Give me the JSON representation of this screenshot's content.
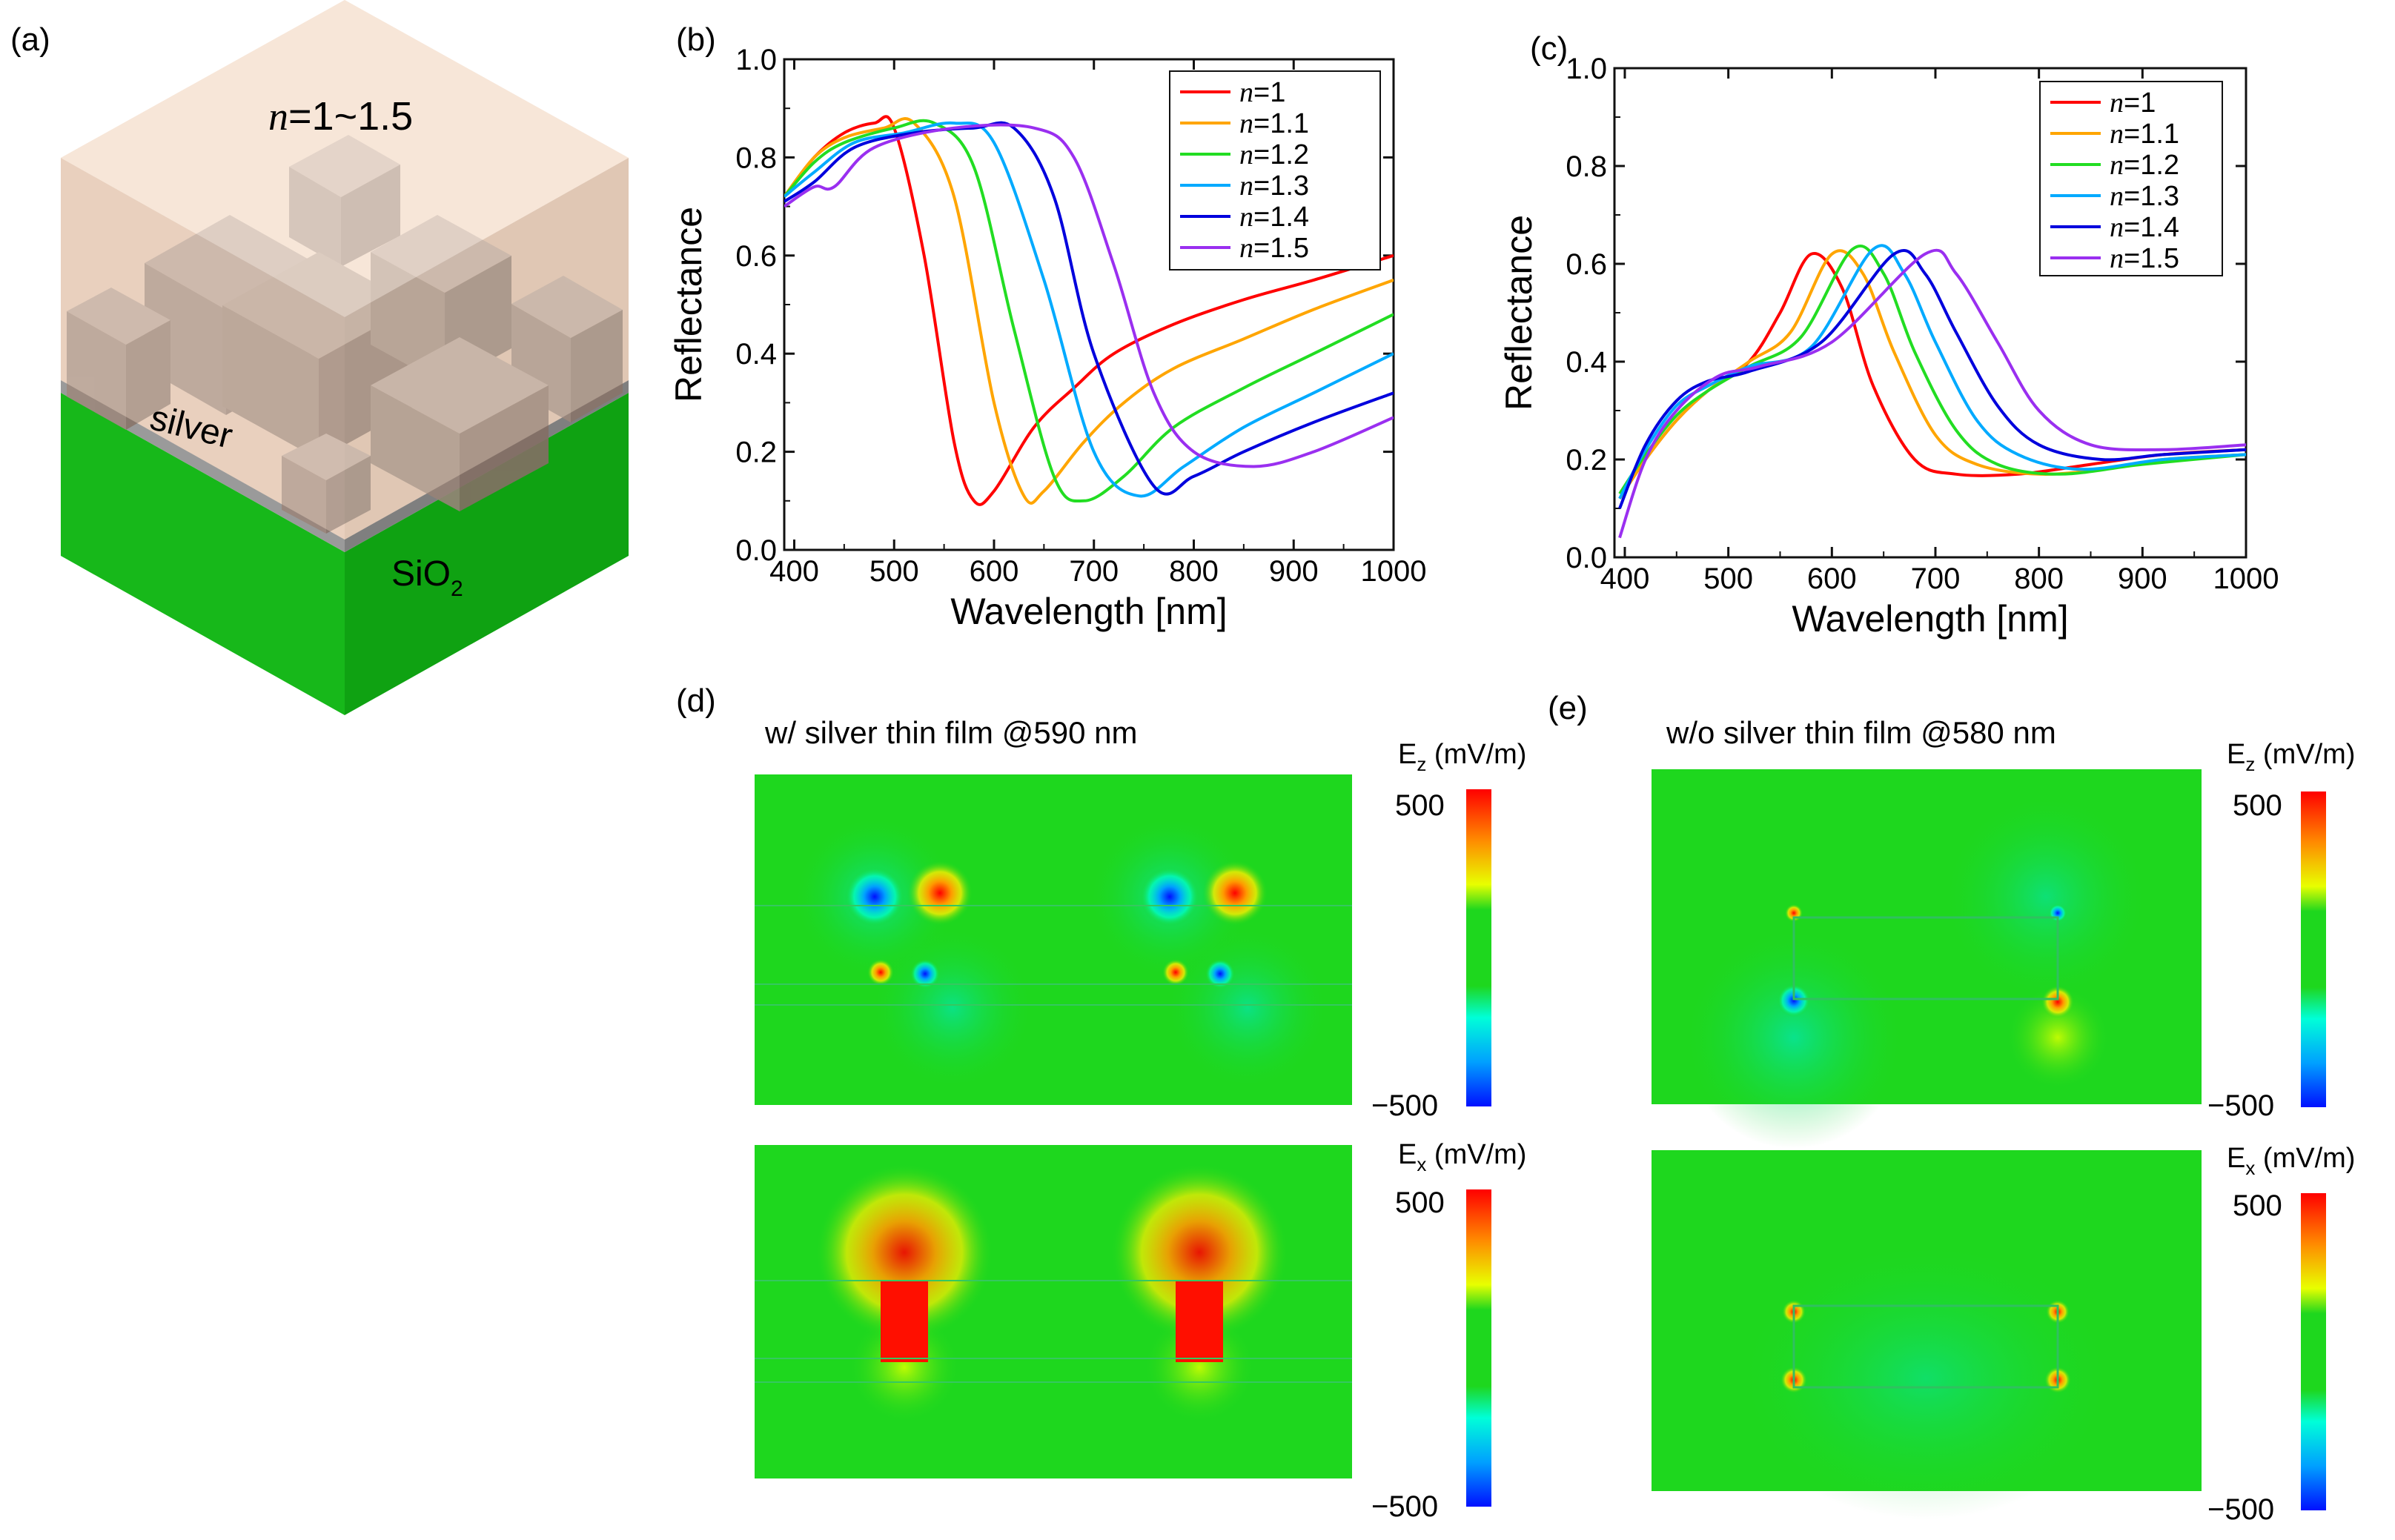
{
  "panel_labels": {
    "a": "(a)",
    "b": "(b)",
    "c": "(c)",
    "d": "(d)",
    "e": "(e)"
  },
  "schematic": {
    "top_label_n": "n",
    "top_label_rest": "=1~1.5",
    "silver_label": "silver",
    "sio2_label": "SiO",
    "sio2_sub": "2",
    "colors": {
      "top_light": "#f4dcc8",
      "substrate": "#19c21c",
      "pillar": "#b7a49a"
    }
  },
  "chart_data": [
    {
      "id": "b",
      "type": "line",
      "xlabel": "Wavelength [nm]",
      "ylabel": "Reflectance",
      "xlim": [
        390,
        1000
      ],
      "ylim": [
        0,
        1.0
      ],
      "xticks": [
        400,
        500,
        600,
        700,
        800,
        900,
        1000
      ],
      "yticks": [
        0.0,
        0.2,
        0.4,
        0.6,
        0.8,
        1.0
      ],
      "ytick_labels": [
        "0.0",
        "0.2",
        "0.4",
        "0.6",
        "0.8",
        "1.0"
      ],
      "legend_position": "top-right",
      "series": [
        {
          "name_n": "n",
          "name_rest": "=1",
          "color": "#ff0000",
          "x": [
            390,
            420,
            450,
            480,
            500,
            530,
            560,
            580,
            600,
            640,
            680,
            720,
            780,
            850,
            920,
            1000
          ],
          "y": [
            0.72,
            0.8,
            0.85,
            0.87,
            0.86,
            0.6,
            0.22,
            0.1,
            0.12,
            0.25,
            0.33,
            0.4,
            0.46,
            0.51,
            0.55,
            0.6
          ]
        },
        {
          "name_n": "n",
          "name_rest": "=1.1",
          "color": "#ffa500",
          "x": [
            390,
            420,
            450,
            490,
            520,
            560,
            600,
            630,
            650,
            690,
            730,
            780,
            850,
            920,
            1000
          ],
          "y": [
            0.72,
            0.8,
            0.84,
            0.86,
            0.87,
            0.72,
            0.3,
            0.11,
            0.12,
            0.22,
            0.3,
            0.37,
            0.43,
            0.49,
            0.55
          ]
        },
        {
          "name_n": "n",
          "name_rest": "=1.2",
          "color": "#22dd22",
          "x": [
            390,
            420,
            450,
            500,
            540,
            580,
            620,
            660,
            690,
            730,
            780,
            850,
            920,
            1000
          ],
          "y": [
            0.72,
            0.79,
            0.83,
            0.86,
            0.87,
            0.78,
            0.45,
            0.15,
            0.1,
            0.15,
            0.25,
            0.33,
            0.4,
            0.48
          ]
        },
        {
          "name_n": "n",
          "name_rest": "=1.3",
          "color": "#00aaff",
          "x": [
            390,
            420,
            460,
            510,
            560,
            600,
            650,
            700,
            745,
            790,
            850,
            920,
            1000
          ],
          "y": [
            0.72,
            0.77,
            0.83,
            0.85,
            0.87,
            0.83,
            0.55,
            0.2,
            0.11,
            0.17,
            0.25,
            0.32,
            0.4
          ]
        },
        {
          "name_n": "n",
          "name_rest": "=1.4",
          "color": "#0000dd",
          "x": [
            390,
            420,
            460,
            520,
            580,
            620,
            660,
            700,
            760,
            800,
            850,
            920,
            1000
          ],
          "y": [
            0.71,
            0.75,
            0.82,
            0.85,
            0.86,
            0.86,
            0.72,
            0.4,
            0.13,
            0.15,
            0.2,
            0.26,
            0.32
          ]
        },
        {
          "name_n": "n",
          "name_rest": "=1.5",
          "color": "#9a2ff0",
          "x": [
            390,
            420,
            440,
            480,
            560,
            640,
            680,
            720,
            760,
            800,
            860,
            920,
            1000
          ],
          "y": [
            0.7,
            0.74,
            0.74,
            0.82,
            0.86,
            0.86,
            0.8,
            0.58,
            0.32,
            0.2,
            0.17,
            0.2,
            0.27
          ]
        }
      ]
    },
    {
      "id": "c",
      "type": "line",
      "xlabel": "Wavelength [nm]",
      "ylabel": "Reflectance",
      "xlim": [
        390,
        1000
      ],
      "ylim": [
        0,
        1.0
      ],
      "xticks": [
        400,
        500,
        600,
        700,
        800,
        900,
        1000
      ],
      "yticks": [
        0.0,
        0.2,
        0.4,
        0.6,
        0.8,
        1.0
      ],
      "ytick_labels": [
        "0.0",
        "0.2",
        "0.4",
        "0.6",
        "0.8",
        "1.0"
      ],
      "legend_position": "top-right",
      "series": [
        {
          "name_n": "n",
          "name_rest": "=1",
          "color": "#ff0000",
          "x": [
            395,
            420,
            450,
            480,
            520,
            550,
            580,
            610,
            640,
            680,
            720,
            780,
            850,
            920,
            1000
          ],
          "y": [
            0.12,
            0.2,
            0.28,
            0.34,
            0.4,
            0.5,
            0.62,
            0.55,
            0.35,
            0.2,
            0.17,
            0.17,
            0.19,
            0.21,
            0.22
          ]
        },
        {
          "name_n": "n",
          "name_rest": "=1.1",
          "color": "#ffa500",
          "x": [
            395,
            420,
            450,
            480,
            520,
            560,
            600,
            630,
            660,
            700,
            740,
            800,
            860,
            920,
            1000
          ],
          "y": [
            0.12,
            0.2,
            0.28,
            0.34,
            0.4,
            0.46,
            0.62,
            0.58,
            0.42,
            0.25,
            0.19,
            0.17,
            0.18,
            0.2,
            0.21
          ]
        },
        {
          "name_n": "n",
          "name_rest": "=1.2",
          "color": "#22dd22",
          "x": [
            395,
            420,
            450,
            480,
            520,
            570,
            620,
            650,
            680,
            720,
            760,
            820,
            900,
            1000
          ],
          "y": [
            0.13,
            0.21,
            0.29,
            0.34,
            0.39,
            0.45,
            0.63,
            0.58,
            0.42,
            0.26,
            0.19,
            0.17,
            0.19,
            0.21
          ]
        },
        {
          "name_n": "n",
          "name_rest": "=1.3",
          "color": "#00aaff",
          "x": [
            395,
            420,
            450,
            480,
            520,
            580,
            640,
            670,
            700,
            740,
            780,
            840,
            920,
            1000
          ],
          "y": [
            0.12,
            0.22,
            0.31,
            0.35,
            0.39,
            0.43,
            0.63,
            0.58,
            0.44,
            0.28,
            0.21,
            0.18,
            0.2,
            0.21
          ]
        },
        {
          "name_n": "n",
          "name_rest": "=1.4",
          "color": "#0000dd",
          "x": [
            395,
            420,
            450,
            480,
            520,
            590,
            660,
            690,
            720,
            760,
            800,
            860,
            920,
            1000
          ],
          "y": [
            0.1,
            0.23,
            0.32,
            0.36,
            0.38,
            0.44,
            0.62,
            0.58,
            0.46,
            0.31,
            0.23,
            0.2,
            0.21,
            0.22
          ]
        },
        {
          "name_n": "n",
          "name_rest": "=1.5",
          "color": "#9a2ff0",
          "x": [
            395,
            420,
            450,
            490,
            530,
            600,
            690,
            720,
            760,
            800,
            850,
            920,
            1000
          ],
          "y": [
            0.04,
            0.2,
            0.3,
            0.37,
            0.39,
            0.44,
            0.62,
            0.58,
            0.44,
            0.3,
            0.23,
            0.22,
            0.23
          ]
        }
      ]
    }
  ],
  "field_maps": {
    "d": {
      "title": "w/ silver thin film @590 nm",
      "ez_label": "E",
      "ez_sub": "z",
      "ex_label": "E",
      "ex_sub": "x",
      "unit": " (mV/m)",
      "max_label": "500",
      "min_label": "−500"
    },
    "e": {
      "title": "w/o silver thin film @580 nm",
      "ez_label": "E",
      "ez_sub": "z",
      "ex_label": "E",
      "ex_sub": "x",
      "unit": " (mV/m)",
      "max_label": "500",
      "min_label": "−500"
    },
    "colors": {
      "field_bg": "#1ed71e",
      "hot": "#ff1a00",
      "cold": "#0030ff"
    }
  }
}
